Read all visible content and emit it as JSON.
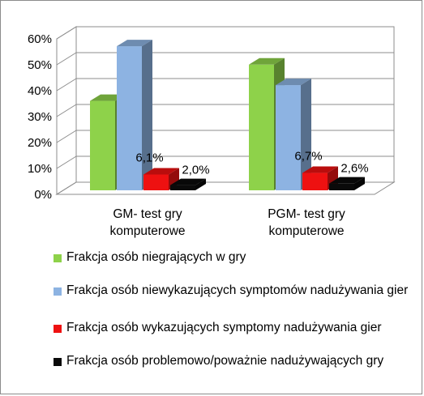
{
  "chart_data": {
    "type": "bar",
    "variant": "3d-clustered-column",
    "categories": [
      "GM- test gry komputerowe",
      "PGM- test gry komputerowe"
    ],
    "category_lines": [
      [
        "GM- test gry",
        "komputerowe"
      ],
      [
        "PGM- test gry",
        "komputerowe"
      ]
    ],
    "series": [
      {
        "name": "Frakcja osób niegrających w gry",
        "color": "#8ed24a",
        "values": [
          34.5,
          48.5
        ],
        "labels": [
          "",
          ""
        ]
      },
      {
        "name": "Frakcja osób niewykazujących symptomów nadużywania gier",
        "color": "#8db3e2",
        "values": [
          55.6,
          40.6
        ],
        "labels": [
          "",
          ""
        ]
      },
      {
        "name": "Frakcja  osób wykazujących symptomy nadużywania gier",
        "color": "#ee1111",
        "values": [
          6.1,
          6.7
        ],
        "labels": [
          "6,1%",
          "6,7%"
        ]
      },
      {
        "name": "Frakcja osób problemowo/poważnie nadużywających gry",
        "color": "#0a0a0a",
        "values": [
          2.0,
          2.6
        ],
        "labels": [
          "2,0%",
          "2,6%"
        ]
      }
    ],
    "ylim": [
      0,
      60
    ],
    "yticks": [
      0,
      10,
      20,
      30,
      40,
      50,
      60
    ],
    "ytick_labels": [
      "0%",
      "10%",
      "20%",
      "30%",
      "40%",
      "50%",
      "60%"
    ],
    "grid": true,
    "legend_position": "bottom",
    "title": "",
    "xlabel": "",
    "ylabel": ""
  },
  "legend": {
    "items": [
      {
        "label": "Frakcja osób niegrających w gry",
        "color": "#8ed24a"
      },
      {
        "label": "Frakcja osób niewykazujących symptomów nadużywania gier",
        "color": "#8db3e2"
      },
      {
        "label": "Frakcja  osób wykazujących symptomy nadużywania gier",
        "color": "#ee1111"
      },
      {
        "label": "Frakcja osób problemowo/poważnie nadużywających gry",
        "color": "#0a0a0a"
      }
    ]
  }
}
